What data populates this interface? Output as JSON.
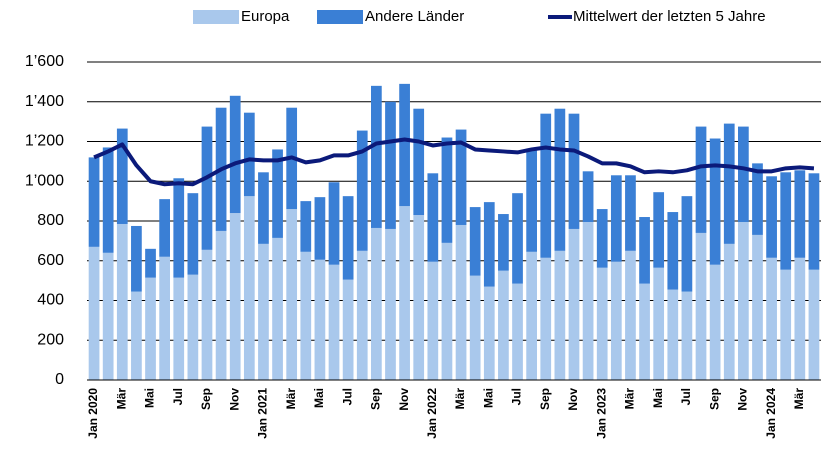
{
  "chart_data": {
    "type": "stacked_bar_line",
    "categories": [
      "Jan 2020",
      null,
      "Mär",
      null,
      "Mai",
      null,
      "Jul",
      null,
      "Sep",
      null,
      "Nov",
      null,
      "Jan 2021",
      null,
      "Mär",
      null,
      "Mai",
      null,
      "Jul",
      null,
      "Sep",
      null,
      "Nov",
      null,
      "Jan 2022",
      null,
      "Mär",
      null,
      "Mai",
      null,
      "Jul",
      null,
      "Sep",
      null,
      "Nov",
      null,
      "Jan 2023",
      null,
      "Mär",
      null,
      "Mai",
      null,
      "Jul",
      null,
      "Sep",
      null,
      "Nov",
      null,
      "Jan 2024",
      null,
      "Mär",
      null
    ],
    "series": [
      {
        "name": "Europa",
        "kind": "bar",
        "color": "#a9c8ec",
        "values": [
          670,
          640,
          785,
          445,
          515,
          620,
          515,
          530,
          655,
          750,
          840,
          925,
          685,
          715,
          860,
          645,
          605,
          580,
          505,
          650,
          765,
          760,
          875,
          830,
          595,
          690,
          780,
          525,
          470,
          550,
          485,
          645,
          615,
          650,
          760,
          795,
          565,
          595,
          650,
          485,
          565,
          455,
          445,
          740,
          580,
          685,
          795,
          730,
          615,
          555,
          615,
          555
        ]
      },
      {
        "name": "Andere Länder",
        "kind": "bar",
        "color": "#3a7fd5",
        "values": [
          450,
          530,
          480,
          330,
          145,
          290,
          500,
          410,
          620,
          620,
          590,
          420,
          360,
          445,
          510,
          255,
          315,
          415,
          420,
          605,
          715,
          640,
          615,
          535,
          445,
          530,
          480,
          345,
          425,
          285,
          455,
          520,
          725,
          715,
          580,
          255,
          295,
          435,
          380,
          335,
          380,
          390,
          480,
          535,
          635,
          605,
          480,
          360,
          410,
          490,
          440,
          485
        ]
      },
      {
        "name": "Mittelwert der letzten 5 Jahre",
        "kind": "line",
        "color": "#0b1a7a",
        "values": [
          1120,
          1150,
          1185,
          1080,
          1000,
          985,
          990,
          985,
          1020,
          1060,
          1090,
          1110,
          1105,
          1105,
          1120,
          1095,
          1105,
          1130,
          1130,
          1150,
          1190,
          1200,
          1210,
          1200,
          1180,
          1190,
          1195,
          1160,
          1155,
          1150,
          1145,
          1160,
          1170,
          1160,
          1155,
          1125,
          1090,
          1090,
          1075,
          1045,
          1050,
          1045,
          1055,
          1075,
          1080,
          1075,
          1065,
          1050,
          1050,
          1065,
          1070,
          1065
        ]
      }
    ],
    "ylim": [
      0,
      1600
    ],
    "yticks": [
      0,
      200,
      400,
      600,
      800,
      {
        "value": 1000,
        "label": "1’000"
      },
      {
        "value": 1200,
        "label": "1’200"
      },
      {
        "value": 1400,
        "label": "1’400"
      },
      {
        "value": 1600,
        "label": "1’600"
      }
    ],
    "grid": true,
    "legend": "top"
  }
}
